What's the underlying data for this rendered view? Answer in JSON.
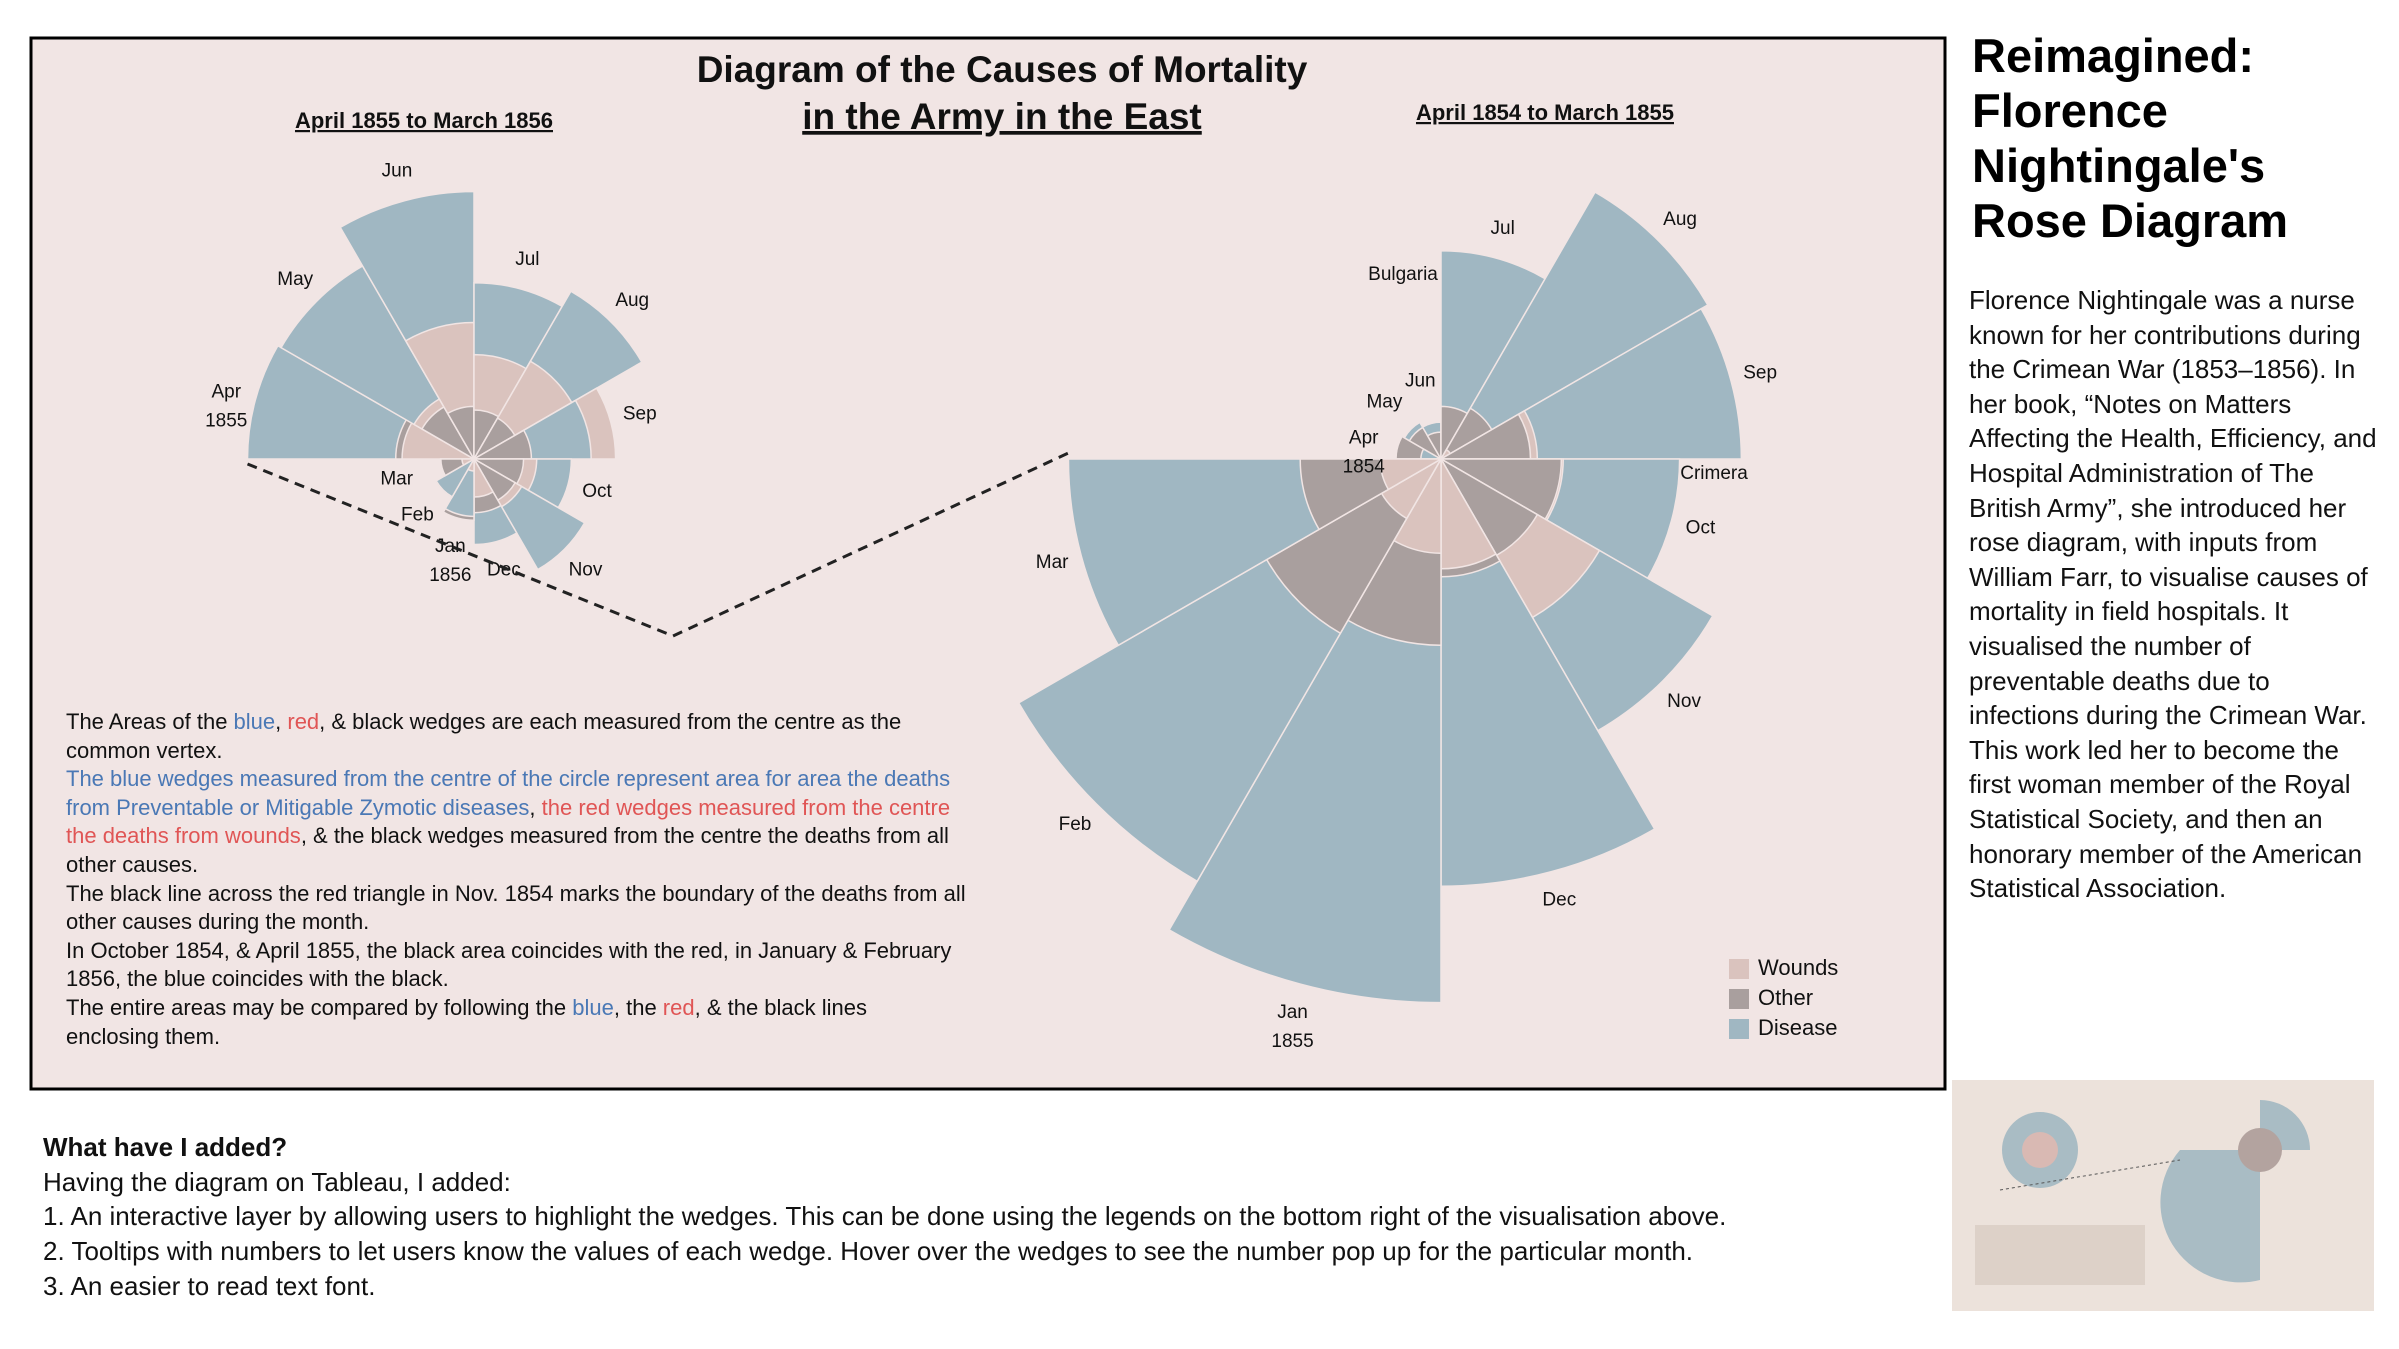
{
  "panel_title": [
    "Diagram of the Causes of Mortality",
    "in the Army in the East"
  ],
  "chart_data": [
    {
      "type": "rose",
      "title": "April 1855 to March 1856",
      "categories": [
        "Apr",
        "May",
        "Jun",
        "Jul",
        "Aug",
        "Sep",
        "Oct",
        "Nov",
        "Dec",
        "Jan",
        "Feb",
        "Mar"
      ],
      "annotations": [
        "1855",
        "1856"
      ],
      "series": [
        {
          "name": "Wounds",
          "color": "#dac3be",
          "values": [
            17.9,
            16.6,
            64.5,
            37.7,
            44.1,
            69.4,
            13.6,
            10.5,
            5.0,
            0.5,
            0,
            0.5
          ]
        },
        {
          "name": "Other",
          "color": "#a99f9e",
          "values": [
            21.2,
            12.5,
            9.6,
            8.3,
            7.7,
            11.4,
            8.5,
            7.8,
            10.0,
            13.0,
            7.0,
            3.8
          ]
        },
        {
          "name": "Disease",
          "color": "#a0b7c2",
          "values": [
            177.5,
            171.8,
            247.6,
            107.5,
            129.9,
            47.5,
            32.8,
            56.4,
            25.3,
            11.4,
            6.6,
            3.9
          ]
        }
      ]
    },
    {
      "type": "rose",
      "title": "April 1854 to March 1855",
      "categories": [
        "Apr",
        "May",
        "Jun",
        "Jul",
        "Aug",
        "Sep",
        "Oct",
        "Nov",
        "Dec",
        "Jan",
        "Feb",
        "Mar"
      ],
      "annotations": [
        "1854",
        "Bulgaria",
        "Crimera",
        "1855"
      ],
      "series": [
        {
          "name": "Wounds",
          "color": "#dac3be",
          "values": [
            0,
            0,
            0,
            0,
            0.4,
            32.1,
            51.7,
            115.8,
            41.7,
            30.7,
            16.3,
            12.8
          ]
        },
        {
          "name": "Other",
          "color": "#a99f9e",
          "values": [
            7.0,
            4.6,
            2.5,
            9.6,
            11.9,
            27.7,
            50.1,
            42.8,
            48.0,
            120.0,
            140.1,
            68.6
          ]
        },
        {
          "name": "Disease",
          "color": "#a0b7c2",
          "values": [
            1.4,
            6.2,
            4.7,
            150.0,
            328.5,
            312.2,
            197.0,
            340.6,
            631.5,
            1022.8,
            822.8,
            480.3
          ]
        }
      ]
    }
  ],
  "notes": [
    [
      {
        "text": "The Areas of the ",
        "color": "#111111"
      },
      {
        "text": "blue",
        "color": "#4a78b5"
      },
      {
        "text": ", ",
        "color": "#111111"
      },
      {
        "text": "red",
        "color": "#e05555"
      },
      {
        "text": ", & black wedges are each measured from the centre as the common vertex.",
        "color": "#111111"
      }
    ],
    [
      {
        "text": "The blue wedges measured from the centre of the circle represent area for area the deaths from Preventable or Mitigable Zymotic diseases",
        "color": "#4a78b5"
      },
      {
        "text": ", ",
        "color": "#111111"
      },
      {
        "text": "the red wedges measured from the centre the deaths from wounds",
        "color": "#e05555"
      },
      {
        "text": ", & the black wedges measured from the centre the deaths from all other causes.",
        "color": "#111111"
      }
    ],
    [
      {
        "text": "The black line across the red triangle in Nov. 1854 marks the boundary of the deaths from all other causes during the month.",
        "color": "#111111"
      }
    ],
    [
      {
        "text": "In October 1854, & April 1855, the black area coincides with the red, in January & February 1856, the blue coincides with the black.",
        "color": "#111111"
      }
    ],
    [
      {
        "text": "The entire areas may be compared by following the ",
        "color": "#111111"
      },
      {
        "text": "blue",
        "color": "#4a78b5"
      },
      {
        "text": ", the ",
        "color": "#111111"
      },
      {
        "text": "red",
        "color": "#e05555"
      },
      {
        "text": ", & the black lines enclosing them.",
        "color": "#111111"
      }
    ]
  ],
  "sidebar": {
    "title": "Reimagined: Florence Nightingale's Rose Diagram",
    "body": "Florence Nightingale was a nurse known for her contributions during the Crimean War (1853–1856). In her book, “Notes on Matters Affecting the Health, Efficiency, and Hospital Administration of The British Army”, she introduced her rose diagram, with inputs from William Farr, to visualise causes of mortality in field hospitals. It visualised the number of preventable deaths due to infections during the Crimean War. This work led her to become the first woman member of the Royal Statistical Society, and then an honorary member of the American Statistical Association."
  },
  "additions": {
    "heading": "What have I added?",
    "lines": [
      "Having the diagram on Tableau, I added:",
      "1. An interactive layer by allowing users to highlight the wedges. This can be done using the legends on the bottom right of the visualisation above.",
      "2. Tooltips with numbers to let users know the values of each wedge. Hover over the wedges to see the number pop up for the particular month.",
      "3. An easier to read text font."
    ]
  }
}
